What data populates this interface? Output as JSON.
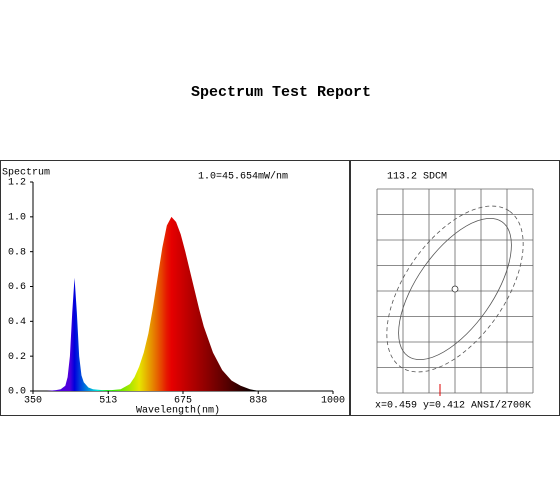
{
  "chart_data": {
    "type": "area",
    "title": "Spectrum Test Report",
    "y_label": "Spectrum",
    "x_label": "Wavelength(nm)",
    "annotation": "1.0=45.654mW/nm",
    "x": [
      380,
      400,
      410,
      420,
      425,
      430,
      435,
      440,
      445,
      450,
      455,
      460,
      470,
      480,
      500,
      520,
      540,
      560,
      570,
      580,
      590,
      600,
      610,
      620,
      630,
      640,
      650,
      660,
      670,
      680,
      690,
      700,
      710,
      720,
      740,
      760,
      780,
      800,
      820,
      840
    ],
    "values": [
      0,
      0.005,
      0.01,
      0.03,
      0.08,
      0.2,
      0.45,
      0.65,
      0.45,
      0.2,
      0.09,
      0.05,
      0.02,
      0.01,
      0.005,
      0.005,
      0.01,
      0.04,
      0.08,
      0.14,
      0.22,
      0.33,
      0.48,
      0.65,
      0.82,
      0.95,
      1.0,
      0.97,
      0.9,
      0.8,
      0.69,
      0.58,
      0.47,
      0.37,
      0.22,
      0.12,
      0.06,
      0.03,
      0.01,
      0
    ],
    "xlim": [
      350,
      1000
    ],
    "xticks": [
      350,
      513,
      675,
      838,
      1000
    ],
    "ylim": [
      0,
      1.2
    ],
    "yticks": [
      {
        "value": 0,
        "label": "0.0"
      },
      0.2,
      0.4,
      0.6,
      0.8,
      {
        "value": 1,
        "label": "1.0"
      },
      1.2
    ]
  },
  "sdcm_panel": {
    "label": "113.2 SDCM",
    "coordinates": "x=0.459 y=0.412 ANSI/2700K"
  }
}
